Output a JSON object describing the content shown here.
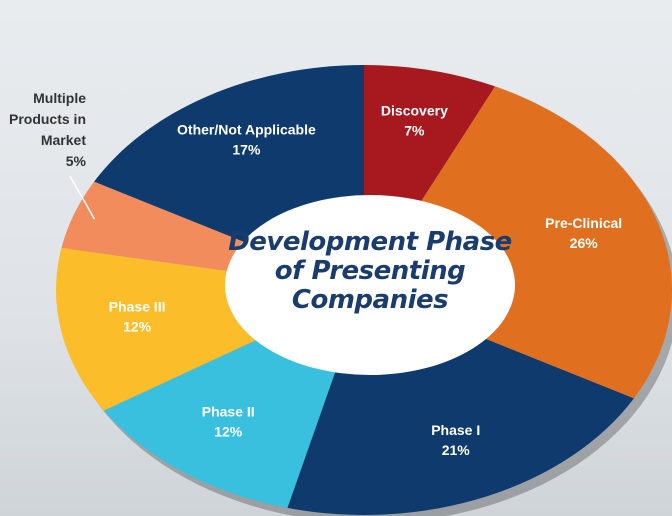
{
  "chart_data": {
    "type": "pie",
    "title": "Development Phase of Presenting Companies",
    "categories": [
      "Discovery",
      "Pre-Clinical",
      "Phase I",
      "Phase II",
      "Phase III",
      "Multiple Products in Market",
      "Other/Not Applicable"
    ],
    "values": [
      7,
      26,
      21,
      12,
      12,
      5,
      17
    ],
    "value_labels": [
      "7%",
      "26%",
      "21%",
      "12%",
      "12%",
      "5%",
      "17%"
    ],
    "colors": [
      "#a8191f",
      "#e07020",
      "#0e3a6e",
      "#38c0de",
      "#fbbd2a",
      "#f28c5c",
      "#0e3a6e"
    ]
  }
}
